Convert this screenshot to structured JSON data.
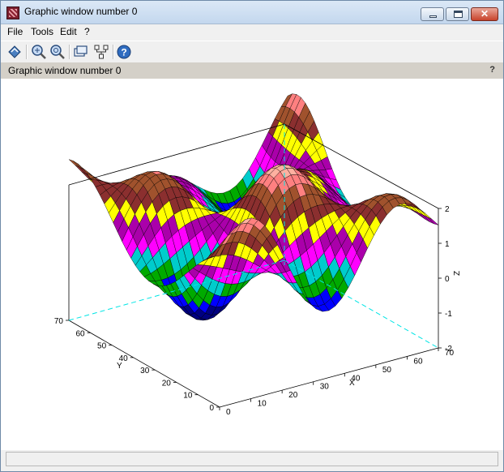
{
  "window": {
    "title": "Graphic window number 0"
  },
  "menubar": {
    "items": [
      "File",
      "Tools",
      "Edit",
      "?"
    ]
  },
  "toolbar": {
    "icons": [
      "rotate-icon",
      "zoom-icon",
      "unzoom-icon",
      "datatip-icon",
      "editor-icon",
      "help-icon"
    ]
  },
  "info_bar": {
    "label": "Graphic window number 0",
    "help": "?"
  },
  "colors": {
    "titlebar": "#c3d7ee",
    "canvas": "#ffffff",
    "guide": "#00e5e5",
    "surface_palette": [
      "#000080",
      "#0000ff",
      "#00aa00",
      "#00cccc",
      "#ff00ff",
      "#aa00aa",
      "#ffff00",
      "#8b2f2f",
      "#a0522d",
      "#ff8080",
      "#ffb0a0"
    ]
  },
  "plot": {
    "type": "3d surface (plot3d)",
    "x_ticks": [
      "0",
      "10",
      "20",
      "30",
      "40",
      "50",
      "60",
      "70"
    ],
    "y_ticks": [
      "0",
      "10",
      "20",
      "30",
      "40",
      "50",
      "60",
      "70"
    ],
    "z_ticks": [
      "-2",
      "-1",
      "0",
      "1",
      "2"
    ],
    "x_label": "X",
    "y_label": "Y",
    "z_label": "Z",
    "x_range": [
      0,
      70
    ],
    "y_range": [
      0,
      70
    ],
    "z_range": [
      -2,
      2
    ]
  }
}
